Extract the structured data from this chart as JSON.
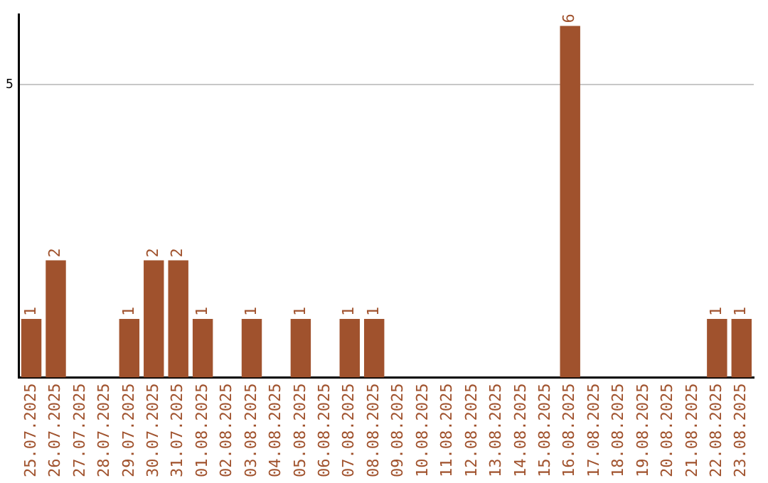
{
  "chart_data": {
    "type": "bar",
    "categories": [
      "25.07.2025",
      "26.07.2025",
      "27.07.2025",
      "28.07.2025",
      "29.07.2025",
      "30.07.2025",
      "31.07.2025",
      "01.08.2025",
      "02.08.2025",
      "03.08.2025",
      "04.08.2025",
      "05.08.2025",
      "06.08.2025",
      "07.08.2025",
      "08.08.2025",
      "09.08.2025",
      "10.08.2025",
      "11.08.2025",
      "12.08.2025",
      "13.08.2025",
      "14.08.2025",
      "15.08.2025",
      "16.08.2025",
      "17.08.2025",
      "18.08.2025",
      "19.08.2025",
      "20.08.2025",
      "21.08.2025",
      "22.08.2025",
      "23.08.2025"
    ],
    "values": [
      1,
      2,
      0,
      0,
      1,
      2,
      2,
      1,
      0,
      1,
      0,
      1,
      0,
      1,
      1,
      0,
      0,
      0,
      0,
      0,
      0,
      0,
      6,
      0,
      0,
      0,
      0,
      0,
      1,
      1
    ],
    "value_labels": [
      "1",
      "2",
      null,
      null,
      "1",
      "2",
      "2",
      "1",
      null,
      "1",
      null,
      "1",
      null,
      "1",
      "1",
      null,
      null,
      null,
      null,
      null,
      null,
      null,
      "6",
      null,
      null,
      null,
      null,
      null,
      "1",
      "1"
    ],
    "color": "#a0522d",
    "ylim": [
      0,
      6.2
    ],
    "yticks": [
      5
    ],
    "grid": "y",
    "legend": false
  }
}
